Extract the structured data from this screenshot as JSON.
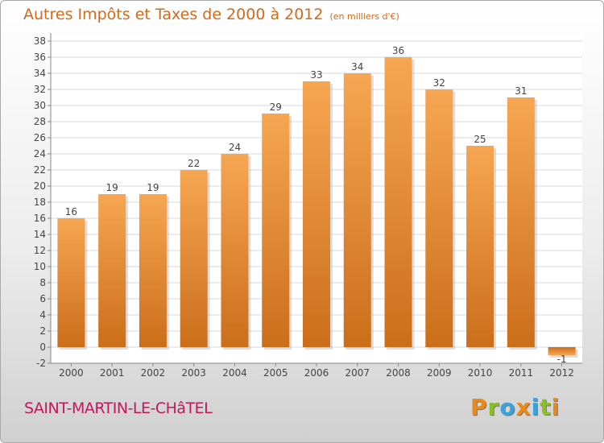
{
  "header": {
    "title": "Autres Impôts et Taxes de 2000 à 2012",
    "unit": "(en milliers d'€)"
  },
  "footer": {
    "place": "SAINT-MARTIN-LE-CHâTEL",
    "logo": "Proxiti"
  },
  "colors": {
    "bar_top": "#f6a652",
    "bar_bottom": "#cb6e1a",
    "title": "#d16a1b",
    "place": "#c2185b",
    "grid": "#d8d8d8",
    "plot_bg": "#ffffff"
  },
  "chart_data": {
    "type": "bar",
    "categories": [
      "2000",
      "2001",
      "2002",
      "2003",
      "2004",
      "2005",
      "2006",
      "2007",
      "2008",
      "2009",
      "2010",
      "2011",
      "2012"
    ],
    "values": [
      16,
      19,
      19,
      22,
      24,
      29,
      33,
      34,
      36,
      32,
      25,
      31,
      -1
    ],
    "value_labels": [
      "16",
      "19",
      "19",
      "22",
      "24",
      "29",
      "33",
      "34",
      "36",
      "32",
      "25",
      "31",
      "-1"
    ],
    "title": "Autres Impôts et Taxes de 2000 à 2012",
    "unit": "(en milliers d'€)",
    "xlabel": "",
    "ylabel": "",
    "ylim": [
      -2,
      38
    ],
    "yticks": [
      -2,
      0,
      2,
      4,
      6,
      8,
      10,
      12,
      14,
      16,
      18,
      20,
      22,
      24,
      26,
      28,
      30,
      32,
      34,
      36,
      38
    ],
    "grid": true,
    "legend": "none"
  }
}
